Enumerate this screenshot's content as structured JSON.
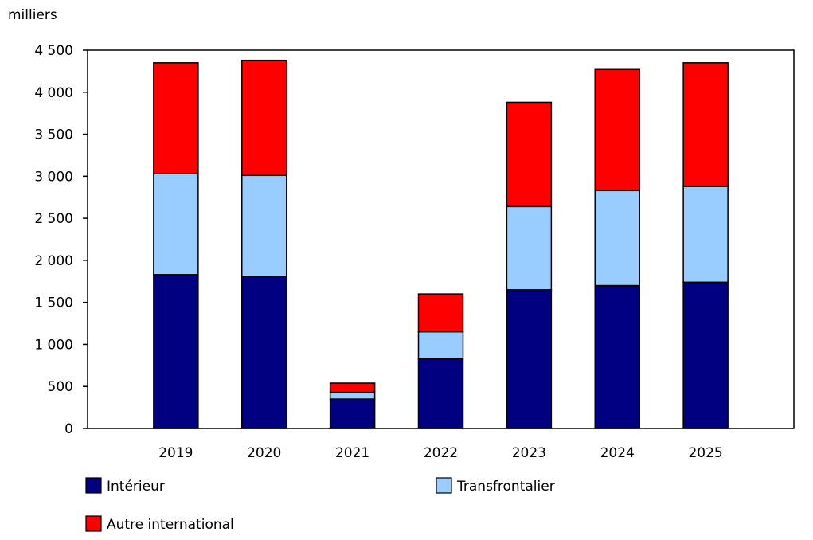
{
  "chart_data": {
    "type": "bar",
    "stacked": true,
    "ylabel": "milliers",
    "ylim": [
      0,
      4500
    ],
    "yticks": [
      0,
      500,
      1000,
      1500,
      2000,
      2500,
      3000,
      3500,
      4000,
      4500
    ],
    "ytick_labels": [
      "0",
      "500",
      "1 000",
      "1 500",
      "2 000",
      "2 500",
      "3 000",
      "3 500",
      "4 000",
      "4 500"
    ],
    "categories": [
      "2019",
      "2020",
      "2021",
      "2022",
      "2023",
      "2024",
      "2025"
    ],
    "grid": false,
    "legend_position": "bottom",
    "series": [
      {
        "name": "Intérieur",
        "color": "#000080",
        "values": [
          1830,
          1810,
          350,
          830,
          1650,
          1700,
          1740
        ]
      },
      {
        "name": "Transfrontalier",
        "color": "#99ccff",
        "values": [
          1200,
          1200,
          80,
          320,
          990,
          1130,
          1140
        ]
      },
      {
        "name": "Autre international",
        "color": "#ff0000",
        "values": [
          1320,
          1370,
          110,
          450,
          1240,
          1440,
          1470
        ]
      }
    ]
  }
}
